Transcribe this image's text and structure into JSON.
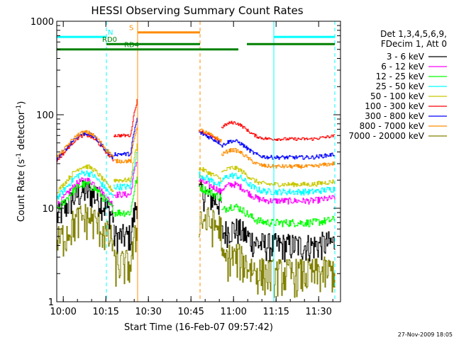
{
  "chart_data": {
    "type": "line",
    "title": "HESSI Observing Summary Count Rates",
    "xlabel": "Start Time (16-Feb-07 09:57:42)",
    "ylabel_main": "Count Rate (s",
    "ylabel_sup1": "-1",
    "ylabel_mid": " detector",
    "ylabel_sup2": "-1",
    "ylabel_end": ")",
    "x_axis": {
      "unit": "minutes since 09:57:42",
      "range": [
        0,
        100
      ],
      "ticks": [
        {
          "v": 2.3,
          "label": "10:00"
        },
        {
          "v": 17.3,
          "label": "10:15"
        },
        {
          "v": 32.3,
          "label": "10:30"
        },
        {
          "v": 47.3,
          "label": "10:45"
        },
        {
          "v": 62.3,
          "label": "11:00"
        },
        {
          "v": 77.3,
          "label": "11:15"
        },
        {
          "v": 92.3,
          "label": "11:30"
        }
      ]
    },
    "y_axis": {
      "scale": "log",
      "range": [
        1,
        1000
      ],
      "ticks": [
        {
          "v": 1,
          "label": "1"
        },
        {
          "v": 10,
          "label": "10"
        },
        {
          "v": 100,
          "label": "100"
        },
        {
          "v": 1000,
          "label": "1000"
        }
      ]
    },
    "legend_title": [
      "Det 1,3,4,5,6,9,",
      "FDecim 1, Att 0"
    ],
    "legend_position": "top-right",
    "series": [
      {
        "name": "3 - 6 keV",
        "color": "#000000"
      },
      {
        "name": "6 - 12 keV",
        "color": "#ff00ff"
      },
      {
        "name": "12 - 25 keV",
        "color": "#00ff00"
      },
      {
        "name": "25 - 50 keV",
        "color": "#00ffff"
      },
      {
        "name": "50 - 100 keV",
        "color": "#c8c800"
      },
      {
        "name": "100 - 300 keV",
        "color": "#ff0000"
      },
      {
        "name": "300 - 800 keV",
        "color": "#0000ff"
      },
      {
        "name": "800 - 7000 keV",
        "color": "#ff8c00"
      },
      {
        "name": "7000 - 20000 keV",
        "color": "#808000"
      }
    ],
    "series_levels": {
      "seg1": {
        "x": [
          0,
          20
        ],
        "peak_x": 10
      },
      "seg2": {
        "x": [
          20,
          28.5
        ]
      },
      "seg3": {
        "x": [
          50,
          58
        ]
      },
      "seg4": {
        "x": [
          58,
          98
        ]
      }
    },
    "flags": [
      {
        "label": "N",
        "color": "#00ffff",
        "y": 680,
        "segments": [
          [
            0,
            17.5
          ],
          [
            76.5,
            98
          ]
        ]
      },
      {
        "label": "S",
        "color": "#ff8c00",
        "y": 760,
        "segments": [
          [
            28.5,
            50.5
          ]
        ]
      },
      {
        "label": "RD0",
        "color": "#008000",
        "y": 570,
        "segments": [
          [
            17.5,
            50.5
          ],
          [
            67,
            98
          ]
        ]
      },
      {
        "label": "RD4",
        "color": "#008000",
        "y": 500,
        "segments": [
          [
            0,
            50.5
          ],
          [
            50.5,
            64
          ]
        ]
      }
    ],
    "vlines": [
      {
        "x": 0,
        "color": "#00ffff",
        "style": "solid"
      },
      {
        "x": 17.5,
        "color": "#00ffff",
        "style": "dashed"
      },
      {
        "x": 28.5,
        "color": "#ff8c00",
        "style": "solid"
      },
      {
        "x": 50.5,
        "color": "#ff8c00",
        "style": "dashed"
      },
      {
        "x": 76.5,
        "color": "#00ffff",
        "style": "solid"
      },
      {
        "x": 98,
        "color": "#00ffff",
        "style": "dashed"
      }
    ]
  },
  "footer": {
    "timestamp": "27-Nov-2009 18:05"
  }
}
